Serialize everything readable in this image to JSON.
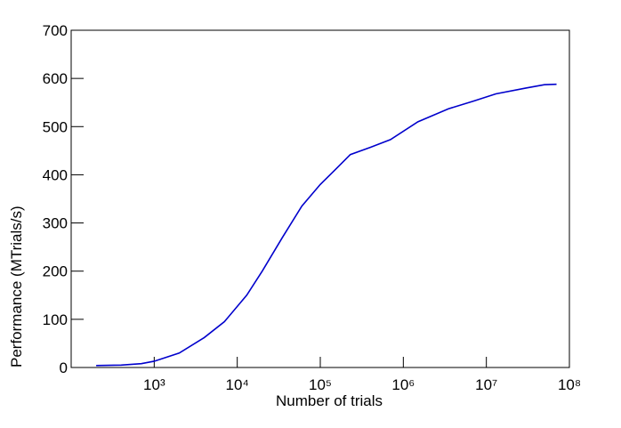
{
  "chart_data": {
    "type": "line",
    "x_label": "Number of trials",
    "y_label": "Performance (MTrials/s)",
    "x_scale": "log",
    "xlim": [
      100,
      100000000
    ],
    "xticks": [
      {
        "value": 1000,
        "label": "10³"
      },
      {
        "value": 10000,
        "label": "10⁴"
      },
      {
        "value": 100000,
        "label": "10⁵"
      },
      {
        "value": 1000000,
        "label": "10⁶"
      },
      {
        "value": 10000000,
        "label": "10⁷"
      },
      {
        "value": 100000000,
        "label": "10⁸"
      }
    ],
    "ylim": [
      0,
      700
    ],
    "yticks": [
      0,
      100,
      200,
      300,
      400,
      500,
      600,
      700
    ],
    "x": [
      200,
      400,
      700,
      1000,
      2000,
      4000,
      7000,
      13000,
      20000,
      35000,
      60000,
      100000,
      150000,
      230000,
      400000,
      700000,
      1500000,
      3500000,
      7000000,
      13000000,
      30000000,
      50000000,
      70000000
    ],
    "series": [
      {
        "color": "#0000cc",
        "values": [
          4,
          5,
          8,
          13,
          30,
          62,
          95,
          150,
          200,
          270,
          335,
          380,
          410,
          442,
          457,
          473,
          510,
          537,
          553,
          568,
          580,
          587,
          588
        ]
      }
    ]
  }
}
